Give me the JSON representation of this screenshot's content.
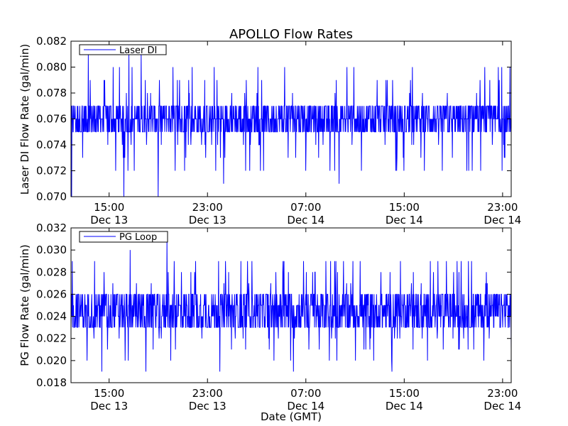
{
  "chart_data": {
    "title": "APOLLO Flow Rates",
    "xlabel": "Date (GMT)",
    "x_tick_labels": [
      {
        "time": "15:00",
        "date": "Dec 13"
      },
      {
        "time": "23:00",
        "date": "Dec 13"
      },
      {
        "time": "07:00",
        "date": "Dec 14"
      },
      {
        "time": "15:00",
        "date": "Dec 14"
      },
      {
        "time": "23:00",
        "date": "Dec 14"
      }
    ],
    "x_tick_hours": [
      15,
      23,
      31,
      39,
      47
    ],
    "x_range_hours": [
      11.9,
      47.7
    ],
    "colors": {
      "series": "#0000ff",
      "axes": "#000000",
      "background": "#ffffff"
    },
    "panels": [
      {
        "type": "line",
        "ylabel": "Laser DI Flow Rate (gal/min)",
        "legend": "Laser DI",
        "legend_position": "top-left",
        "ylim": [
          0.07,
          0.082
        ],
        "y_ticks": [
          "0.070",
          "0.072",
          "0.074",
          "0.076",
          "0.078",
          "0.080",
          "0.082"
        ],
        "step": 0.001,
        "typical_range": [
          0.075,
          0.077
        ],
        "spike_range": [
          0.07,
          0.081
        ],
        "spikes": [
          {
            "hour": 11.95,
            "value": 0.07
          },
          {
            "hour": 13.3,
            "value": 0.081
          },
          {
            "hour": 16.2,
            "value": 0.07
          },
          {
            "hour": 16.6,
            "value": 0.081
          },
          {
            "hour": 17.6,
            "value": 0.081
          },
          {
            "hour": 19.0,
            "value": 0.07
          },
          {
            "hour": 24.3,
            "value": 0.071
          },
          {
            "hour": 33.7,
            "value": 0.071
          },
          {
            "hour": 47.6,
            "value": 0.08
          }
        ]
      },
      {
        "type": "line",
        "ylabel": "PG Flow Rate (gal/min)",
        "legend": "PG Loop",
        "legend_position": "top-left",
        "ylim": [
          0.018,
          0.032
        ],
        "y_ticks": [
          "0.018",
          "0.020",
          "0.022",
          "0.024",
          "0.026",
          "0.028",
          "0.030",
          "0.032"
        ],
        "step": 0.001,
        "typical_range": [
          0.023,
          0.026
        ],
        "spike_range": [
          0.019,
          0.031
        ],
        "spikes": [
          {
            "hour": 14.4,
            "value": 0.019
          },
          {
            "hour": 16.7,
            "value": 0.03
          },
          {
            "hour": 18.0,
            "value": 0.019
          },
          {
            "hour": 19.7,
            "value": 0.031
          },
          {
            "hour": 24.0,
            "value": 0.019
          },
          {
            "hour": 30.0,
            "value": 0.019
          },
          {
            "hour": 38.0,
            "value": 0.019
          },
          {
            "hour": 47.7,
            "value": 0.021
          }
        ]
      }
    ]
  }
}
